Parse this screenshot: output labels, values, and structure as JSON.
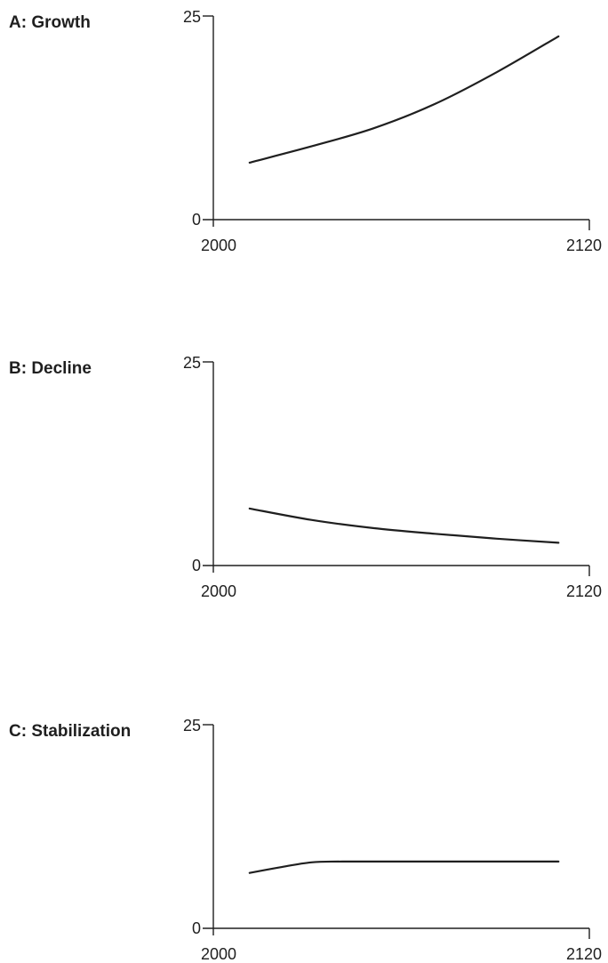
{
  "chart_data": [
    {
      "type": "line",
      "title": "A: Growth",
      "xlabel": "",
      "ylabel": "",
      "xlim": [
        2000,
        2120
      ],
      "ylim": [
        0,
        25
      ],
      "x_tick_labels": [
        "2000",
        "2120"
      ],
      "y_tick_labels": [
        "0",
        "25"
      ],
      "grid": false,
      "series": [
        {
          "x": [
            2010,
            2030,
            2050,
            2070,
            2090,
            2110
          ],
          "y": [
            7,
            9,
            11.2,
            14.2,
            18.1,
            22.5
          ]
        }
      ]
    },
    {
      "type": "line",
      "title": "B: Decline",
      "xlabel": "",
      "ylabel": "",
      "xlim": [
        2000,
        2120
      ],
      "ylim": [
        0,
        25
      ],
      "x_tick_labels": [
        "2000",
        "2120"
      ],
      "y_tick_labels": [
        "0",
        "25"
      ],
      "grid": false,
      "series": [
        {
          "x": [
            2010,
            2030,
            2050,
            2070,
            2090,
            2110
          ],
          "y": [
            7,
            5.6,
            4.6,
            3.9,
            3.3,
            2.8
          ]
        }
      ]
    },
    {
      "type": "line",
      "title": "C: Stabilization",
      "xlabel": "",
      "ylabel": "",
      "xlim": [
        2000,
        2120
      ],
      "ylim": [
        0,
        25
      ],
      "x_tick_labels": [
        "2000",
        "2120"
      ],
      "y_tick_labels": [
        "0",
        "25"
      ],
      "grid": false,
      "series": [
        {
          "x": [
            2010,
            2020,
            2030,
            2040,
            2070,
            2110
          ],
          "y": [
            6.8,
            7.5,
            8.1,
            8.2,
            8.2,
            8.2
          ]
        }
      ]
    }
  ]
}
